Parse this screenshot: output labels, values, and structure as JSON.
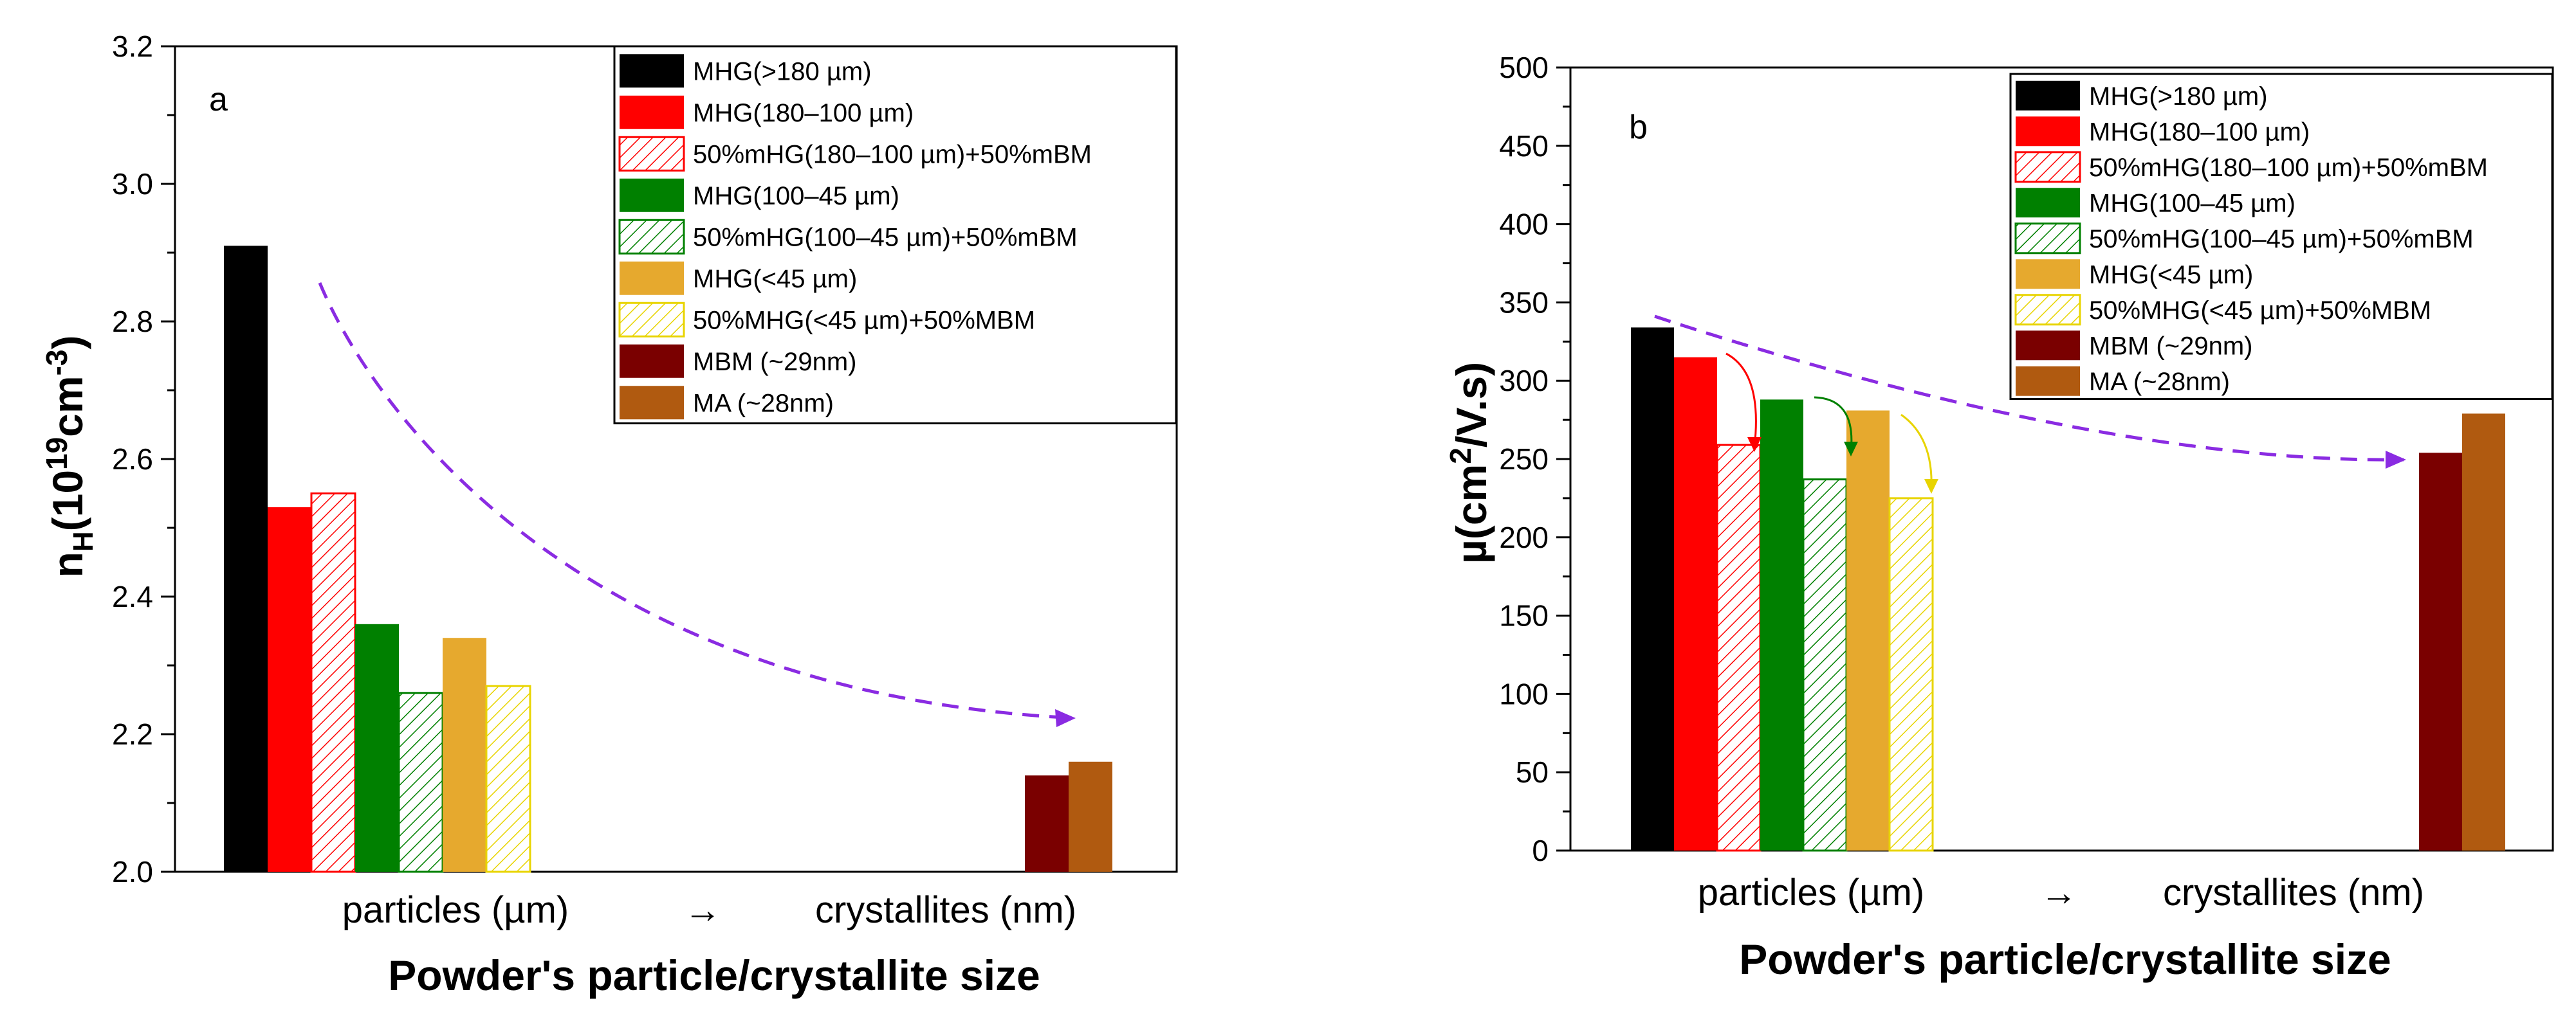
{
  "legend": [
    {
      "label": "MHG(>180 µm)",
      "color": "#000000",
      "hatched": false
    },
    {
      "label": "MHG(180–100 µm)",
      "color": "#ff0000",
      "hatched": false
    },
    {
      "label": "50%mHG(180–100 µm)+50%mBM",
      "color": "#ff0000",
      "hatched": true
    },
    {
      "label": "MHG(100–45 µm)",
      "color": "#008000",
      "hatched": false
    },
    {
      "label": "50%mHG(100–45 µm)+50%mBM",
      "color": "#008000",
      "hatched": true
    },
    {
      "label": "MHG(<45 µm)",
      "color": "#e6a92e",
      "hatched": false
    },
    {
      "label": "50%MHG(<45 µm)+50%MBM",
      "color": "#e8d400",
      "hatched": true
    },
    {
      "label": "MBM (~29nm)",
      "color": "#7a0000",
      "hatched": false
    },
    {
      "label": "MA (~28nm)",
      "color": "#b05a10",
      "hatched": false
    }
  ],
  "chart_data": [
    {
      "type": "bar",
      "panel": "a",
      "ylabel_main": "n",
      "ylabel_sub": "H",
      "ylabel_rest": "(10",
      "ylabel_exp": "19",
      "ylabel_unit": "cm",
      "ylabel_unit_exp": "-3",
      "ylabel_close": ")",
      "xlabel": "Powder's particle/crystallite size",
      "x_tick_left": "particles (µm)",
      "x_arrow": "→",
      "x_tick_right": "crystallites (nm)",
      "ylim": [
        2.0,
        3.2
      ],
      "yticks": [
        "2.0",
        "2.2",
        "2.4",
        "2.6",
        "2.8",
        "3.0",
        "3.2"
      ],
      "series_values": [
        2.91,
        2.53,
        2.55,
        2.36,
        2.26,
        2.34,
        2.27,
        2.14,
        2.16
      ]
    },
    {
      "type": "bar",
      "panel": "b",
      "ylabel_main": "µ(cm",
      "ylabel_exp": "2",
      "ylabel_rest": "/V.s)",
      "xlabel": "Powder's particle/crystallite size",
      "x_tick_left": "particles (µm)",
      "x_arrow": "→",
      "x_tick_right": "crystallites (nm)",
      "ylim": [
        0,
        500
      ],
      "yticks": [
        "0",
        "50",
        "100",
        "150",
        "200",
        "250",
        "300",
        "350",
        "400",
        "450",
        "500"
      ],
      "series_values": [
        334,
        315,
        259,
        288,
        237,
        281,
        225,
        254,
        279
      ]
    }
  ]
}
